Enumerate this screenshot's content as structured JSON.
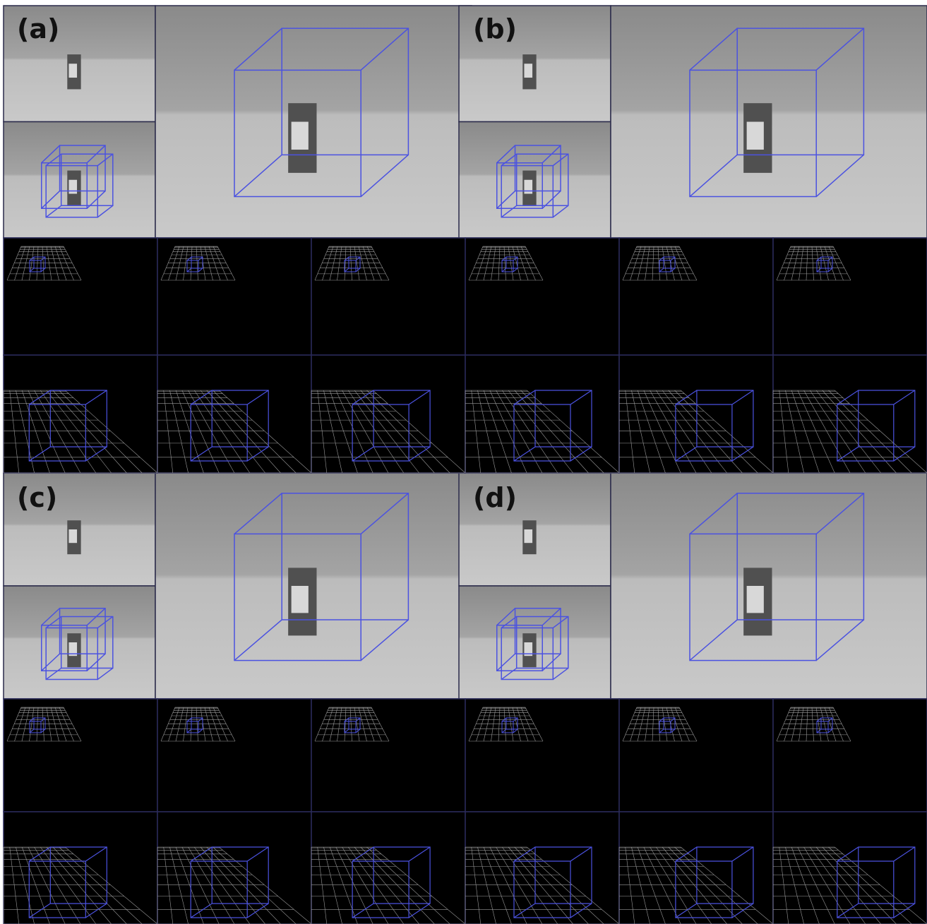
{
  "labels": [
    "(a)",
    "(b)",
    "(c)",
    "(d)"
  ]
}
